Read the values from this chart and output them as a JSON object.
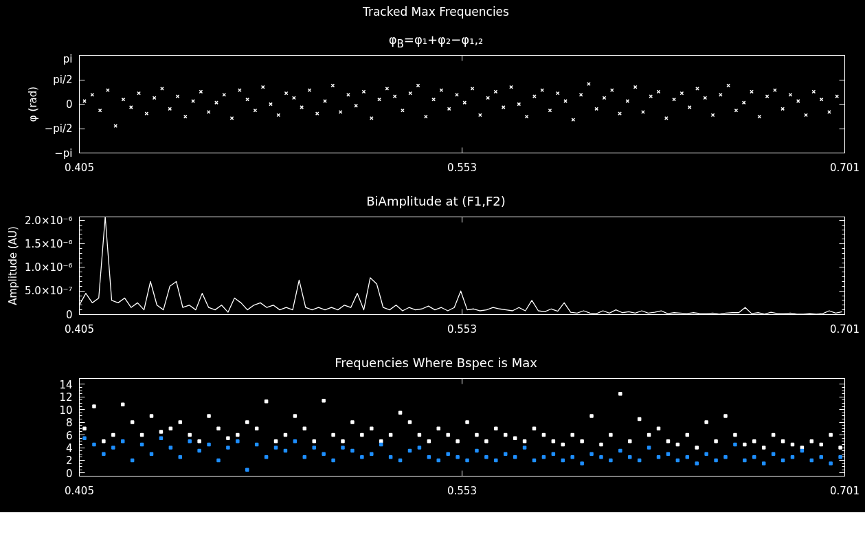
{
  "chart_data": [
    {
      "type": "scatter",
      "title": "φ$_{B}$=φ₁+φ₂−φ₁,₂",
      "ylabel": "φ (rad)",
      "annotations": [
        "Tracked Max Frequencies"
      ],
      "marker": "cross",
      "xlim": [
        0.405,
        0.701
      ],
      "xticks": [
        0.405,
        0.553,
        0.701
      ],
      "ylim": [
        -3.1416,
        3.1416
      ],
      "yticks": [
        {
          "value": -3.1416,
          "label": "−pi"
        },
        {
          "value": -1.5708,
          "label": "−pi/2"
        },
        {
          "value": 0,
          "label": "0"
        },
        {
          "value": 1.5708,
          "label": "pi/2"
        },
        {
          "value": 3.1416,
          "label": "pi"
        }
      ],
      "x": [
        0.407,
        0.41,
        0.413,
        0.416,
        0.419,
        0.422,
        0.425,
        0.428,
        0.431,
        0.434,
        0.437,
        0.44,
        0.443,
        0.446,
        0.449,
        0.452,
        0.455,
        0.458,
        0.461,
        0.464,
        0.467,
        0.47,
        0.473,
        0.476,
        0.479,
        0.482,
        0.485,
        0.488,
        0.491,
        0.494,
        0.497,
        0.5,
        0.503,
        0.506,
        0.509,
        0.512,
        0.515,
        0.518,
        0.521,
        0.524,
        0.527,
        0.53,
        0.533,
        0.536,
        0.539,
        0.542,
        0.545,
        0.548,
        0.551,
        0.554,
        0.557,
        0.56,
        0.563,
        0.566,
        0.569,
        0.572,
        0.575,
        0.578,
        0.581,
        0.584,
        0.587,
        0.59,
        0.593,
        0.596,
        0.599,
        0.602,
        0.605,
        0.608,
        0.611,
        0.614,
        0.617,
        0.62,
        0.623,
        0.626,
        0.629,
        0.632,
        0.635,
        0.638,
        0.641,
        0.644,
        0.647,
        0.65,
        0.653,
        0.656,
        0.659,
        0.662,
        0.665,
        0.668,
        0.671,
        0.674,
        0.677,
        0.68,
        0.683,
        0.686,
        0.689,
        0.692,
        0.695,
        0.698
      ],
      "series": [
        {
          "color": "#ffffff",
          "values": [
            0.2,
            0.6,
            -0.4,
            0.9,
            -1.4,
            0.3,
            -0.2,
            0.7,
            -0.6,
            0.4,
            1.0,
            -0.3,
            0.5,
            -0.8,
            0.2,
            0.8,
            -0.5,
            0.1,
            0.6,
            -0.9,
            0.9,
            0.3,
            -0.4,
            1.1,
            0.0,
            -0.7,
            0.7,
            0.4,
            -0.2,
            0.9,
            -0.6,
            0.2,
            1.2,
            -0.5,
            0.6,
            -0.1,
            0.8,
            -0.9,
            0.3,
            1.0,
            0.5,
            -0.4,
            0.7,
            1.2,
            -0.8,
            0.3,
            0.9,
            -0.3,
            0.6,
            0.1,
            1.0,
            -0.7,
            0.4,
            0.8,
            -0.2,
            1.1,
            0.0,
            -0.8,
            0.5,
            0.9,
            -0.4,
            0.7,
            0.2,
            -1.0,
            0.6,
            1.3,
            -0.3,
            0.4,
            0.9,
            -0.6,
            0.2,
            1.1,
            -0.5,
            0.5,
            0.8,
            -0.9,
            0.3,
            0.7,
            -0.2,
            1.0,
            0.4,
            -0.7,
            0.6,
            1.2,
            -0.4,
            0.1,
            0.8,
            -0.8,
            0.5,
            0.9,
            -0.3,
            0.6,
            0.2,
            -0.7,
            0.8,
            0.3,
            -0.5,
            0.5
          ]
        }
      ]
    },
    {
      "type": "line",
      "title": "BiAmplitude at (F1,F2)",
      "ylabel": "Amplitude (AU)",
      "xlim": [
        0.405,
        0.701
      ],
      "xticks": [
        0.405,
        0.553,
        0.701
      ],
      "ylim": [
        0,
        2.07e-06
      ],
      "yticks": [
        0,
        {
          "value": 5e-07,
          "label": "5.0×10⁻⁷"
        },
        {
          "value": 1e-06,
          "label": "1.0×10⁻⁶"
        },
        {
          "value": 1.5e-06,
          "label": "1.5×10⁻⁶"
        },
        {
          "value": 2e-06,
          "label": "2.0×10⁻⁶"
        }
      ],
      "x": [
        0.405,
        0.4075,
        0.41,
        0.4125,
        0.415,
        0.4175,
        0.42,
        0.4225,
        0.425,
        0.4275,
        0.43,
        0.4325,
        0.435,
        0.4375,
        0.44,
        0.4425,
        0.445,
        0.4475,
        0.45,
        0.4525,
        0.455,
        0.4575,
        0.46,
        0.4625,
        0.465,
        0.4675,
        0.47,
        0.4725,
        0.475,
        0.4775,
        0.48,
        0.4825,
        0.485,
        0.4875,
        0.49,
        0.4925,
        0.495,
        0.4975,
        0.5,
        0.5025,
        0.505,
        0.5075,
        0.51,
        0.5125,
        0.515,
        0.5175,
        0.52,
        0.5225,
        0.525,
        0.5275,
        0.53,
        0.5325,
        0.535,
        0.5375,
        0.54,
        0.5425,
        0.545,
        0.5475,
        0.55,
        0.5525,
        0.555,
        0.5575,
        0.56,
        0.5625,
        0.565,
        0.5675,
        0.57,
        0.5725,
        0.575,
        0.5775,
        0.58,
        0.5825,
        0.585,
        0.5875,
        0.59,
        0.5925,
        0.595,
        0.5975,
        0.6,
        0.6025,
        0.605,
        0.6075,
        0.61,
        0.6125,
        0.615,
        0.6175,
        0.62,
        0.6225,
        0.625,
        0.6275,
        0.63,
        0.6325,
        0.635,
        0.6375,
        0.64,
        0.6425,
        0.645,
        0.6475,
        0.65,
        0.6525,
        0.655,
        0.6575,
        0.66,
        0.6625,
        0.665,
        0.6675,
        0.67,
        0.6725,
        0.675,
        0.6775,
        0.68,
        0.6825,
        0.685,
        0.6875,
        0.69,
        0.6925,
        0.695,
        0.6975,
        0.7
      ],
      "series": [
        {
          "color": "#ffffff",
          "values": [
            2e-07,
            4.5e-07,
            2.5e-07,
            3.5e-07,
            2.07e-06,
            3e-07,
            2.5e-07,
            3.5e-07,
            1.5e-07,
            2.5e-07,
            1e-07,
            7e-07,
            2e-07,
            1e-07,
            6e-07,
            7e-07,
            1.5e-07,
            2e-07,
            1e-07,
            4.5e-07,
            1.5e-07,
            1e-07,
            2e-07,
            5e-08,
            3.5e-07,
            2.5e-07,
            1e-07,
            2e-07,
            2.5e-07,
            1.5e-07,
            2e-07,
            1e-07,
            1.5e-07,
            1e-07,
            7.3e-07,
            1.5e-07,
            1e-07,
            1.5e-07,
            1e-07,
            1.5e-07,
            1e-07,
            2e-07,
            1.5e-07,
            4.5e-07,
            1e-07,
            7.8e-07,
            6.5e-07,
            1.5e-07,
            1e-07,
            2e-07,
            8e-08,
            1.5e-07,
            1e-07,
            1.2e-07,
            1.8e-07,
            1e-07,
            1.5e-07,
            8e-08,
            1.5e-07,
            5e-07,
            1e-07,
            1.2e-07,
            8e-08,
            1e-07,
            1.5e-07,
            1.2e-07,
            1e-07,
            8e-08,
            1.5e-07,
            8e-08,
            3e-07,
            8e-08,
            6e-08,
            1.2e-07,
            7e-08,
            2.5e-07,
            5e-08,
            3e-08,
            8e-08,
            3e-08,
            2e-08,
            8e-08,
            3e-08,
            1e-07,
            4e-08,
            6e-08,
            3e-08,
            8e-08,
            3e-08,
            5e-08,
            8e-08,
            2e-08,
            4e-08,
            3e-08,
            2e-08,
            4e-08,
            2e-08,
            2e-08,
            3e-08,
            1e-08,
            3e-08,
            4e-08,
            4e-08,
            1.5e-07,
            2e-08,
            4e-08,
            1e-08,
            5e-08,
            2e-08,
            2e-08,
            3e-08,
            1e-08,
            1e-08,
            2e-08,
            1e-08,
            2e-08,
            8e-08,
            3e-08,
            6e-08
          ]
        }
      ]
    },
    {
      "type": "scatter",
      "title": "Frequencies Where Bspec is Max",
      "marker": "square",
      "xlim": [
        0.405,
        0.701
      ],
      "xticks": [
        0.405,
        0.553,
        0.701
      ],
      "ylim": [
        -0.5,
        14.9
      ],
      "yticks": [
        0,
        2,
        4,
        6,
        8,
        10,
        12,
        14
      ],
      "x": [
        0.407,
        0.4107,
        0.4144,
        0.4181,
        0.4218,
        0.4255,
        0.4292,
        0.4329,
        0.4366,
        0.4403,
        0.444,
        0.4477,
        0.4514,
        0.4551,
        0.4588,
        0.4625,
        0.4662,
        0.4699,
        0.4736,
        0.4773,
        0.481,
        0.4847,
        0.4884,
        0.4921,
        0.4958,
        0.4995,
        0.5032,
        0.5069,
        0.5106,
        0.5143,
        0.518,
        0.5217,
        0.5254,
        0.5291,
        0.5328,
        0.5365,
        0.5402,
        0.5439,
        0.5476,
        0.5513,
        0.555,
        0.5587,
        0.5624,
        0.5661,
        0.5698,
        0.5735,
        0.5772,
        0.5809,
        0.5846,
        0.5883,
        0.592,
        0.5957,
        0.5994,
        0.6031,
        0.6068,
        0.6105,
        0.6142,
        0.6179,
        0.6216,
        0.6253,
        0.629,
        0.6327,
        0.6364,
        0.6401,
        0.6438,
        0.6475,
        0.6512,
        0.6549,
        0.6586,
        0.6623,
        0.666,
        0.6697,
        0.6734,
        0.6771,
        0.6808,
        0.6845,
        0.6882,
        0.6919,
        0.6956,
        0.6993
      ],
      "series": [
        {
          "color": "#ffffff",
          "values": [
            7,
            10.5,
            5,
            6,
            10.8,
            8,
            6,
            9,
            6.5,
            7,
            8,
            6,
            5,
            9,
            7,
            5.5,
            6,
            8,
            7,
            11.3,
            5,
            6,
            9,
            7,
            5,
            11.4,
            6,
            5,
            8,
            6,
            7,
            5,
            6,
            9.5,
            8,
            6,
            5,
            7,
            6,
            5,
            8,
            6,
            5,
            7,
            6,
            5.5,
            5,
            7,
            6,
            5,
            4.5,
            6,
            5,
            9,
            4.5,
            6,
            12.5,
            5,
            8.5,
            6,
            7,
            5,
            4.5,
            6,
            4,
            8,
            5,
            9,
            6,
            4.5,
            5,
            4,
            6,
            5,
            4.5,
            4,
            5,
            4.5,
            6,
            4
          ]
        },
        {
          "color": "#1e8fff",
          "values": [
            5.5,
            4.5,
            3,
            4,
            5,
            2,
            4.5,
            3,
            5.5,
            4,
            2.5,
            5,
            3.5,
            4.5,
            2,
            4,
            5,
            0.5,
            4.5,
            2.5,
            4,
            3.5,
            5,
            2.5,
            4,
            3,
            2,
            4,
            3.5,
            2.5,
            3,
            4.5,
            2.5,
            2,
            3.5,
            4,
            2.5,
            2,
            3,
            2.5,
            2,
            3.5,
            2.5,
            2,
            3,
            2.5,
            4,
            2,
            2.5,
            3,
            2,
            2.5,
            1.5,
            3,
            2.5,
            2,
            3.5,
            2.5,
            2,
            4,
            2.5,
            3,
            2,
            2.5,
            1.5,
            3,
            2,
            2.5,
            4.5,
            2,
            2.5,
            1.5,
            3,
            2,
            2.5,
            3.5,
            2,
            2.5,
            1.5,
            2.5
          ]
        }
      ]
    }
  ]
}
